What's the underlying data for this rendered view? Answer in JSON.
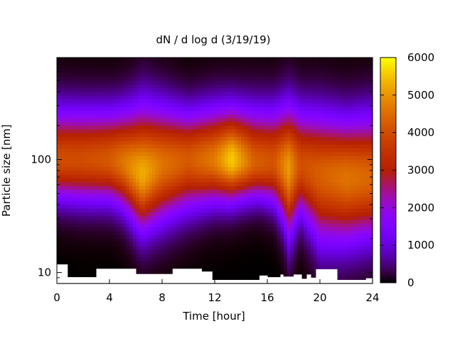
{
  "chart_data": {
    "type": "heatmap",
    "title": "dN / d log d (3/19/19)",
    "xlabel": "Time [hour]",
    "ylabel": "Particle size [nm]",
    "xlim": [
      0,
      24
    ],
    "ylim": [
      8,
      800
    ],
    "y_scale": "log",
    "x_ticks": [
      0,
      4,
      8,
      12,
      16,
      20,
      24
    ],
    "y_ticks": [
      10,
      100
    ],
    "colorbar": {
      "range": [
        0,
        6000
      ],
      "ticks": [
        0,
        1000,
        2000,
        3000,
        4000,
        5000,
        6000
      ],
      "colormap": "gnuplot"
    },
    "grid": false,
    "mode_diameter_nm": {
      "x": [
        0,
        2,
        4,
        5,
        6.5,
        8,
        10,
        12,
        13.3,
        15,
        16.5,
        17.6,
        18.5,
        20,
        22,
        24
      ],
      "y": [
        100,
        100,
        100,
        95,
        75,
        90,
        100,
        100,
        100,
        95,
        95,
        85,
        90,
        75,
        70,
        70
      ]
    },
    "peak_concentration": {
      "x": [
        0,
        2,
        4,
        5,
        6.5,
        8,
        10,
        12,
        13.3,
        15,
        16.5,
        17.6,
        18.5,
        20,
        22,
        24
      ],
      "y": [
        4000,
        4000,
        4200,
        4600,
        5300,
        4600,
        4200,
        4700,
        5600,
        4300,
        4100,
        5100,
        4000,
        4300,
        4600,
        4400
      ]
    },
    "lower_edge_nm": {
      "x": [
        0,
        2,
        4,
        5,
        6,
        6.5,
        7,
        8,
        10,
        12,
        14,
        15.5,
        16.5,
        17.3,
        17.6,
        18,
        18.5,
        19,
        20,
        22,
        24
      ],
      "y": [
        52,
        50,
        50,
        45,
        34,
        30,
        32,
        36,
        44,
        50,
        52,
        52,
        48,
        35,
        28,
        32,
        40,
        34,
        24,
        24,
        26
      ]
    },
    "upper_edge_nm": {
      "x": [
        0,
        4,
        6,
        8,
        10,
        12,
        14,
        16,
        18,
        20,
        22,
        24
      ],
      "y": [
        230,
        225,
        220,
        230,
        220,
        230,
        225,
        225,
        230,
        200,
        180,
        190
      ]
    },
    "missing_low_end_nm": {
      "x": [
        0,
        0.8,
        2,
        3,
        5,
        6,
        8,
        8.8,
        11,
        11.8,
        12.5,
        14,
        15.4,
        16,
        17,
        17.2,
        18,
        18.6,
        19,
        19.3,
        19.7,
        20,
        21.3,
        23.5,
        24
      ],
      "y": [
        11.8,
        9.1,
        9.1,
        10.8,
        10.8,
        9.7,
        9.7,
        10.8,
        10.2,
        8.6,
        8.6,
        8.6,
        9.4,
        9.1,
        9.6,
        9.2,
        9.6,
        8.8,
        9.6,
        9.0,
        10.7,
        10.7,
        8.6,
        8.9,
        8.9
      ]
    }
  }
}
